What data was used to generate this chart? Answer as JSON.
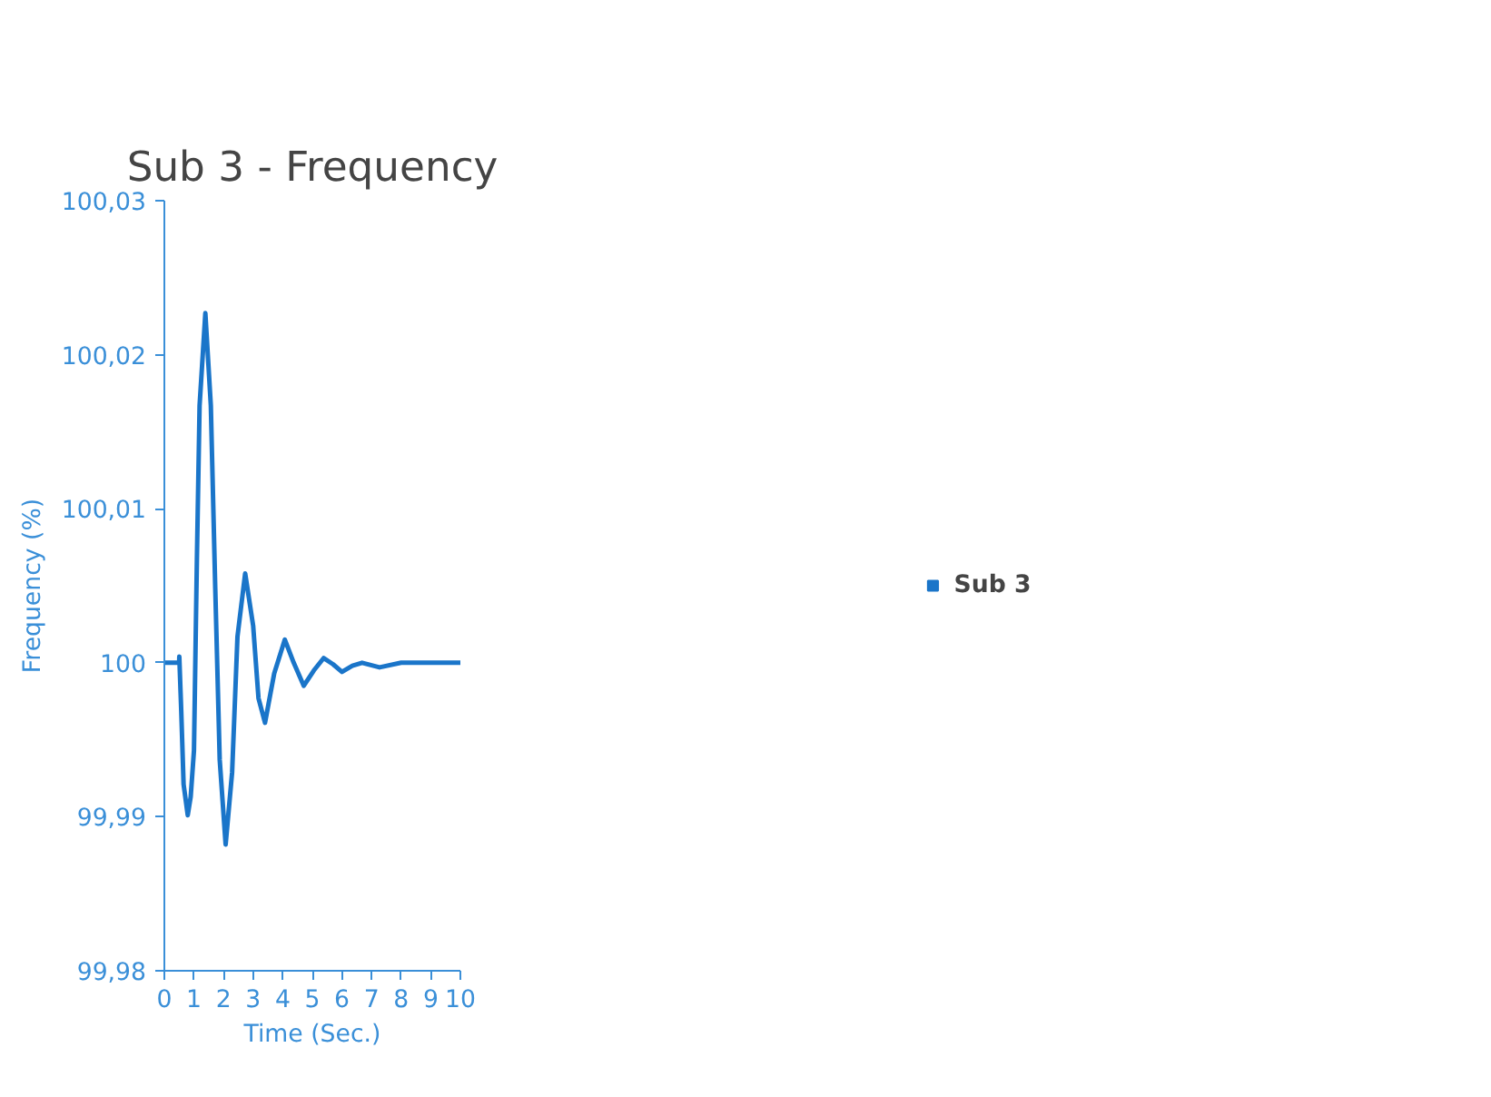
{
  "chart_data": {
    "type": "line",
    "title": "Sub 3 - Frequency",
    "xlabel": "Time (Sec.)",
    "ylabel": "Frequency (%)",
    "x": [
      0,
      0.5,
      0.505,
      0.57,
      0.65,
      0.79,
      0.89,
      1.0,
      1.01,
      1.1,
      1.19,
      1.385,
      1.57,
      1.72,
      1.87,
      2.07,
      2.29,
      2.47,
      2.73,
      3.0,
      3.18,
      3.4,
      3.71,
      4.07,
      4.37,
      4.71,
      5.05,
      5.38,
      5.7,
      6.0,
      6.35,
      6.68,
      7.27,
      8.0,
      9.0,
      10.0
    ],
    "series": [
      {
        "name": "Sub 3",
        "color": "#1a75c9",
        "values": [
          100.0,
          100.0,
          100.0004,
          99.9969,
          99.9921,
          99.9901,
          99.9913,
          99.9943,
          99.9955,
          100.0068,
          100.0167,
          100.0227,
          100.0167,
          100.0048,
          99.9937,
          99.9882,
          99.9929,
          100.0017,
          100.0058,
          100.0024,
          99.9977,
          99.9961,
          99.9993,
          100.0015,
          100.0,
          99.9985,
          99.9995,
          100.0003,
          99.9999,
          99.9994,
          99.9998,
          100.0,
          99.9997,
          100.0,
          100.0,
          100.0
        ]
      }
    ],
    "xlim": [
      0,
      10
    ],
    "xticks": [
      0,
      1,
      2,
      3,
      4,
      5,
      6,
      7,
      8,
      9,
      10
    ],
    "ylim": [
      99.98,
      100.03
    ],
    "yticks": [
      {
        "value": 99.98,
        "label": "99,98"
      },
      {
        "value": 99.99,
        "label": "99,99"
      },
      {
        "value": 100,
        "label": "100"
      },
      {
        "value": 100.01,
        "label": "100,01"
      },
      {
        "value": 100.02,
        "label": "100,02"
      },
      {
        "value": 100.03,
        "label": "100,03"
      }
    ],
    "grid": false,
    "legend": "right",
    "marker": "none",
    "line_style": "solid"
  }
}
